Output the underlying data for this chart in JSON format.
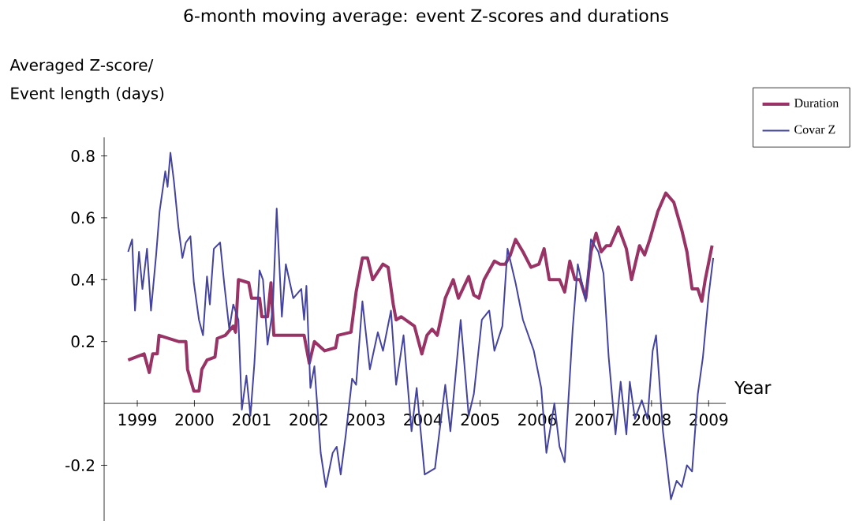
{
  "chart_data": {
    "type": "line",
    "title": "6-month moving average: event Z-scores and durations",
    "ylabel": "Averaged Z-score/ Event length (days)",
    "xlabel": "Year",
    "xlim": [
      1998.42,
      2009.3
    ],
    "ylim": [
      -0.38,
      0.86
    ],
    "xticks": [
      1999,
      2000,
      2001,
      2002,
      2003,
      2004,
      2005,
      2006,
      2007,
      2008,
      2009
    ],
    "yticks": [
      -0.2,
      0.2,
      0.4,
      0.6,
      0.8
    ],
    "legend": "top right",
    "grid": false,
    "marker": "none",
    "line_style": "solid",
    "series": [
      {
        "name": "Duration",
        "color": "#993366",
        "x": [
          1998.84,
          1999.12,
          1999.21,
          1999.27,
          1999.35,
          1999.38,
          1999.72,
          1999.85,
          1999.88,
          1999.99,
          2000.08,
          2000.13,
          2000.22,
          2000.36,
          2000.4,
          2000.54,
          2000.68,
          2000.72,
          2000.77,
          2000.95,
          2001.0,
          2001.14,
          2001.18,
          2001.28,
          2001.34,
          2001.39,
          2001.92,
          2002.01,
          2002.1,
          2002.28,
          2002.47,
          2002.51,
          2002.74,
          2002.83,
          2002.94,
          2003.03,
          2003.12,
          2003.3,
          2003.39,
          2003.48,
          2003.53,
          2003.62,
          2003.85,
          2003.98,
          2004.07,
          2004.16,
          2004.25,
          2004.39,
          2004.53,
          2004.62,
          2004.8,
          2004.89,
          2004.98,
          2005.07,
          2005.25,
          2005.35,
          2005.44,
          2005.53,
          2005.62,
          2005.75,
          2005.89,
          2006.03,
          2006.12,
          2006.21,
          2006.39,
          2006.48,
          2006.57,
          2006.66,
          2006.75,
          2006.85,
          2006.94,
          2007.03,
          2007.12,
          2007.21,
          2007.28,
          2007.42,
          2007.56,
          2007.65,
          2007.79,
          2007.88,
          2007.97,
          2008.11,
          2008.25,
          2008.39,
          2008.53,
          2008.62,
          2008.71,
          2008.81,
          2008.88,
          2008.94,
          2009.06
        ],
        "values": [
          0.14,
          0.16,
          0.1,
          0.16,
          0.16,
          0.22,
          0.2,
          0.2,
          0.11,
          0.04,
          0.04,
          0.11,
          0.14,
          0.15,
          0.21,
          0.22,
          0.25,
          0.23,
          0.4,
          0.39,
          0.34,
          0.34,
          0.28,
          0.28,
          0.39,
          0.22,
          0.22,
          0.13,
          0.2,
          0.17,
          0.18,
          0.22,
          0.23,
          0.36,
          0.47,
          0.47,
          0.4,
          0.45,
          0.44,
          0.32,
          0.27,
          0.28,
          0.25,
          0.16,
          0.22,
          0.24,
          0.22,
          0.34,
          0.4,
          0.34,
          0.41,
          0.35,
          0.34,
          0.4,
          0.46,
          0.45,
          0.45,
          0.48,
          0.53,
          0.49,
          0.44,
          0.45,
          0.5,
          0.4,
          0.4,
          0.36,
          0.46,
          0.4,
          0.4,
          0.34,
          0.49,
          0.55,
          0.49,
          0.51,
          0.51,
          0.57,
          0.5,
          0.4,
          0.51,
          0.48,
          0.53,
          0.62,
          0.68,
          0.65,
          0.56,
          0.49,
          0.37,
          0.37,
          0.33,
          0.4,
          0.51
        ]
      },
      {
        "name": "Covar Z",
        "color": "#4444a0",
        "x": [
          1998.84,
          1998.91,
          1998.96,
          1999.03,
          1999.09,
          1999.17,
          1999.24,
          1999.33,
          1999.39,
          1999.49,
          1999.53,
          1999.58,
          1999.64,
          1999.72,
          1999.79,
          1999.85,
          1999.93,
          1999.99,
          2000.08,
          2000.15,
          2000.22,
          2000.27,
          2000.34,
          2000.45,
          2000.52,
          2000.61,
          2000.68,
          2000.77,
          2000.83,
          2000.91,
          2000.98,
          2001.05,
          2001.14,
          2001.2,
          2001.28,
          2001.37,
          2001.44,
          2001.53,
          2001.6,
          2001.73,
          2001.87,
          2001.92,
          2001.96,
          2002.03,
          2002.1,
          2002.21,
          2002.3,
          2002.42,
          2002.49,
          2002.56,
          2002.65,
          2002.76,
          2002.83,
          2002.94,
          2003.07,
          2003.21,
          2003.3,
          2003.44,
          2003.53,
          2003.66,
          2003.8,
          2003.89,
          2004.03,
          2004.21,
          2004.39,
          2004.48,
          2004.66,
          2004.8,
          2004.89,
          2005.03,
          2005.16,
          2005.25,
          2005.39,
          2005.48,
          2005.62,
          2005.75,
          2005.94,
          2006.07,
          2006.16,
          2006.3,
          2006.39,
          2006.48,
          2006.62,
          2006.71,
          2006.85,
          2006.94,
          2007.07,
          2007.16,
          2007.25,
          2007.37,
          2007.46,
          2007.56,
          2007.62,
          2007.71,
          2007.83,
          2007.93,
          2008.02,
          2008.08,
          2008.2,
          2008.34,
          2008.44,
          2008.53,
          2008.62,
          2008.71,
          2008.81,
          2008.9,
          2009.0,
          2009.08
        ],
        "values": [
          0.49,
          0.53,
          0.3,
          0.49,
          0.37,
          0.5,
          0.3,
          0.48,
          0.62,
          0.75,
          0.7,
          0.81,
          0.72,
          0.57,
          0.47,
          0.52,
          0.54,
          0.39,
          0.27,
          0.22,
          0.41,
          0.32,
          0.5,
          0.52,
          0.39,
          0.24,
          0.32,
          0.27,
          -0.02,
          0.09,
          -0.04,
          0.13,
          0.43,
          0.4,
          0.19,
          0.3,
          0.63,
          0.28,
          0.45,
          0.34,
          0.37,
          0.27,
          0.38,
          0.05,
          0.12,
          -0.16,
          -0.27,
          -0.16,
          -0.14,
          -0.23,
          -0.1,
          0.08,
          0.06,
          0.33,
          0.11,
          0.23,
          0.17,
          0.3,
          0.06,
          0.22,
          -0.09,
          0.05,
          -0.23,
          -0.21,
          0.06,
          -0.09,
          0.27,
          -0.04,
          0.03,
          0.27,
          0.3,
          0.17,
          0.25,
          0.5,
          0.39,
          0.27,
          0.17,
          0.05,
          -0.16,
          0.0,
          -0.14,
          -0.19,
          0.24,
          0.45,
          0.33,
          0.53,
          0.49,
          0.42,
          0.15,
          -0.1,
          0.07,
          -0.1,
          0.07,
          -0.05,
          0.01,
          -0.05,
          0.17,
          0.22,
          -0.09,
          -0.31,
          -0.25,
          -0.27,
          -0.2,
          -0.22,
          0.03,
          0.15,
          0.35,
          0.47
        ]
      }
    ]
  }
}
